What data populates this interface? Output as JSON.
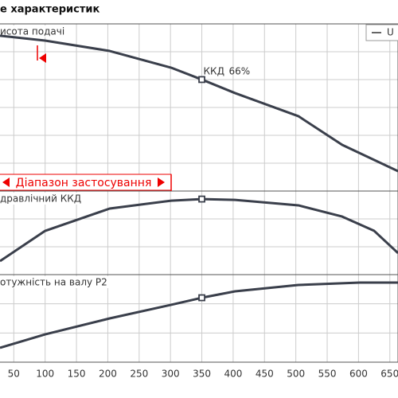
{
  "title": "е характеристик",
  "legend": "U",
  "range_label": "Діапазон застосування",
  "chart_data": [
    {
      "type": "line",
      "label": "исота подачі",
      "color": "#3a3f4b",
      "xlim": [
        28,
        663
      ],
      "ylim": [
        0,
        100
      ],
      "x": [
        28,
        100,
        203,
        301,
        350,
        403,
        504,
        574,
        663
      ],
      "values": [
        92.9,
        90,
        83.8,
        73.8,
        66.7,
        58.6,
        44.8,
        27.6,
        11.9
      ],
      "annotation": {
        "label": "ККД",
        "value": 66,
        "value_label": "66%"
      }
    },
    {
      "type": "line",
      "label": "дравлічний ККД",
      "color": "#3a3f4b",
      "xlim": [
        28,
        663
      ],
      "ylim": [
        0,
        73
      ],
      "x": [
        28,
        100,
        203,
        301,
        350,
        403,
        504,
        574,
        625,
        663
      ],
      "values": [
        11.8,
        38.2,
        57.7,
        64.6,
        66,
        65.3,
        60.5,
        50.7,
        38.2,
        18.8
      ]
    },
    {
      "type": "line",
      "label": "отужність на валу P2",
      "color": "#3a3f4b",
      "xlim": [
        28,
        663
      ],
      "ylim": [
        0,
        100
      ],
      "x": [
        28,
        100,
        203,
        301,
        350,
        403,
        504,
        602,
        663
      ],
      "values": [
        16.4,
        31.8,
        50,
        65.5,
        73.6,
        80.9,
        88.2,
        90.9,
        90.9
      ],
      "xticks": [
        50,
        100,
        150,
        200,
        250,
        300,
        350,
        400,
        450,
        500,
        550,
        600,
        650
      ]
    }
  ]
}
